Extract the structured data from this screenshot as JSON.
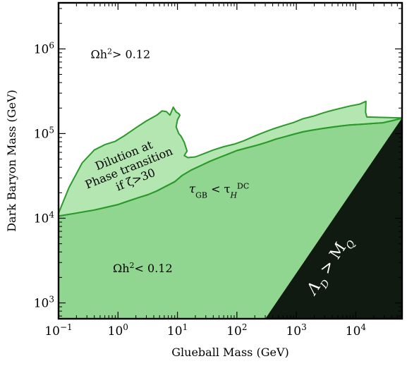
{
  "chart_data": {
    "type": "area",
    "xlabel": "Glueball Mass (GeV)",
    "ylabel": "Dark Baryon Mass (GeV)",
    "x_scale": "log",
    "y_scale": "log",
    "xlim": [
      0.1,
      60000
    ],
    "ylim": [
      650,
      3500000
    ],
    "grid": false,
    "x_ticks": [
      {
        "value": 0.1,
        "base": "10",
        "exp": "−1"
      },
      {
        "value": 1,
        "base": "10",
        "exp": "0"
      },
      {
        "value": 10,
        "base": "10",
        "exp": "1"
      },
      {
        "value": 100,
        "base": "10",
        "exp": "2"
      },
      {
        "value": 1000,
        "base": "10",
        "exp": "3"
      },
      {
        "value": 10000,
        "base": "10",
        "exp": "4"
      }
    ],
    "y_ticks": [
      {
        "value": 1000,
        "base": "10",
        "exp": "3"
      },
      {
        "value": 10000,
        "base": "10",
        "exp": "4"
      },
      {
        "value": 100000,
        "base": "10",
        "exp": "5"
      },
      {
        "value": 1000000,
        "base": "10",
        "exp": "6"
      }
    ],
    "colors": {
      "underabundant_fill": "#90d690",
      "dilution_fill": "#b3e6b0",
      "boundary_line": "#2a9a2a",
      "excluded_fill": "#111a11",
      "excluded_label": "#ffffff"
    },
    "regions": [
      {
        "id": "omega-below",
        "label_pre": "Ωh",
        "label_sup": "2",
        "label_post": "< 0.12",
        "label_at": [
          2.6,
          2300
        ],
        "boundary": {
          "x": [
            0.1,
            0.2,
            0.4,
            0.7,
            1.0,
            1.5,
            2.2,
            3.2,
            4.5,
            6.5,
            9.0,
            12,
            17,
            25,
            35,
            50,
            70,
            100,
            150,
            220,
            320,
            450,
            650,
            900,
            1300,
            1900,
            2800,
            4000,
            5600,
            7800,
            10800,
            14900,
            20600,
            28400,
            39200,
            54100,
            60000
          ],
          "y": [
            10600,
            11500,
            12500,
            13700,
            14500,
            16000,
            17500,
            19000,
            21000,
            24000,
            27000,
            32000,
            37000,
            42000,
            47000,
            52000,
            57000,
            63000,
            68000,
            73000,
            79000,
            86000,
            92000,
            98000,
            105000,
            110000,
            115000,
            119000,
            123000,
            126000,
            128000,
            130000,
            132000,
            134000,
            141000,
            149000,
            153000
          ]
        }
      },
      {
        "id": "dilution",
        "label_lines": [
          "Dilution at",
          "Phase transition",
          "if ζ>30"
        ],
        "label_at": [
          1.7,
          37000
        ],
        "label_rotation": -22,
        "boundary": {
          "x": [
            0.1,
            0.15,
            0.25,
            0.4,
            0.6,
            0.9,
            1.3,
            2.0,
            3.0,
            4.5,
            5.5,
            6.5,
            7.5,
            8.5,
            9.5,
            10.5,
            11.0,
            10.0,
            9.5,
            10.5,
            11.5,
            13.0,
            14.5,
            13.0,
            15,
            20,
            28,
            40,
            60,
            90,
            130,
            190,
            280,
            400,
            600,
            900,
            1300,
            1900,
            2800,
            4000,
            5700,
            8100,
            11500,
            14800,
            14600,
            15300
          ],
          "y": [
            11500,
            23000,
            45000,
            64000,
            74000,
            81000,
            95000,
            117000,
            141000,
            165000,
            185000,
            182000,
            165000,
            205000,
            180000,
            172000,
            165000,
            145000,
            120000,
            100000,
            93000,
            79000,
            62000,
            55000,
            52000,
            53000,
            58000,
            64000,
            70000,
            75000,
            82000,
            92000,
            103000,
            113000,
            124000,
            135000,
            150000,
            160000,
            175000,
            188000,
            200000,
            212000,
            222000,
            240000,
            178000,
            157000
          ]
        }
      },
      {
        "id": "omega-above",
        "label_pre": "Ωh",
        "label_sup": "2",
        "label_post": "> 0.12",
        "label_at": [
          1.1,
          780000
        ]
      },
      {
        "id": "lifetime",
        "label_base": "τ",
        "label_sub": "GB",
        "label_mid": " < τ",
        "label_sub2": "H",
        "label_sup": "DC",
        "label_at": [
          50,
          20000
        ]
      },
      {
        "id": "excluded",
        "label_main": "Λ",
        "label_sub": "D",
        "label_mid": " > M",
        "label_sub2": "Q",
        "label_at": [
          4100,
          2600
        ],
        "label_rotation": -57,
        "polygon": {
          "x": [
            300,
            60000,
            60000
          ],
          "y": [
            650,
            650,
            153000
          ]
        }
      }
    ]
  }
}
